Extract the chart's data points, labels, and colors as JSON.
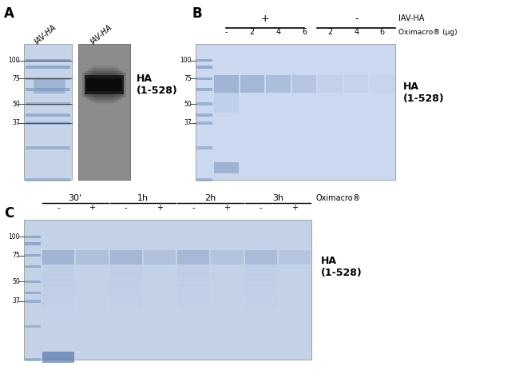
{
  "fig_width": 6.5,
  "fig_height": 4.78,
  "bg_color": "#ffffff",
  "panel_A": {
    "label": "A",
    "gel_bg": "#c8d4ea",
    "wb_bg": "#8c8c8c",
    "ha_label": "HA\n(1-528)",
    "col1_label": "IAV-HA",
    "col2_label": "IAV-HA"
  },
  "panel_B": {
    "label": "B",
    "gel_bg": "#ccd8f0",
    "ha_label": "HA\n(1-528)",
    "plus_label": "+",
    "minus_label": "-",
    "iavha_label": "IAV-HA",
    "col_labels": [
      "-",
      "2",
      "4",
      "6",
      "2",
      "4",
      "6"
    ],
    "oximacro_label": "Oximacro® (μg)"
  },
  "panel_C": {
    "label": "C",
    "gel_bg": "#c4d2e8",
    "ha_label": "HA\n(1-528)",
    "time_labels": [
      "30'",
      "1h",
      "2h",
      "3h"
    ],
    "pm_labels": [
      "-",
      "+",
      "-",
      "+",
      "-",
      "+",
      "-",
      "+"
    ],
    "oximacro_label": "Oximacro®"
  },
  "mw_labels": [
    "100",
    "75",
    "50",
    "37"
  ],
  "mw_values": [
    100,
    75,
    50,
    37
  ],
  "ladder_mws": [
    100,
    90,
    75,
    63,
    50,
    42,
    37,
    25,
    15
  ],
  "colors": {
    "gel_light": "#dce8f8",
    "gel_band_blue": "#8098c0",
    "gel_band_dark": "#5070a0",
    "wb_bg": "#8a8a8a",
    "wb_band": "#1c1c1c",
    "text": "#000000",
    "line": "#000000",
    "ladder_blue": "#7090b8",
    "smear_blue": "#9ab0d0"
  }
}
